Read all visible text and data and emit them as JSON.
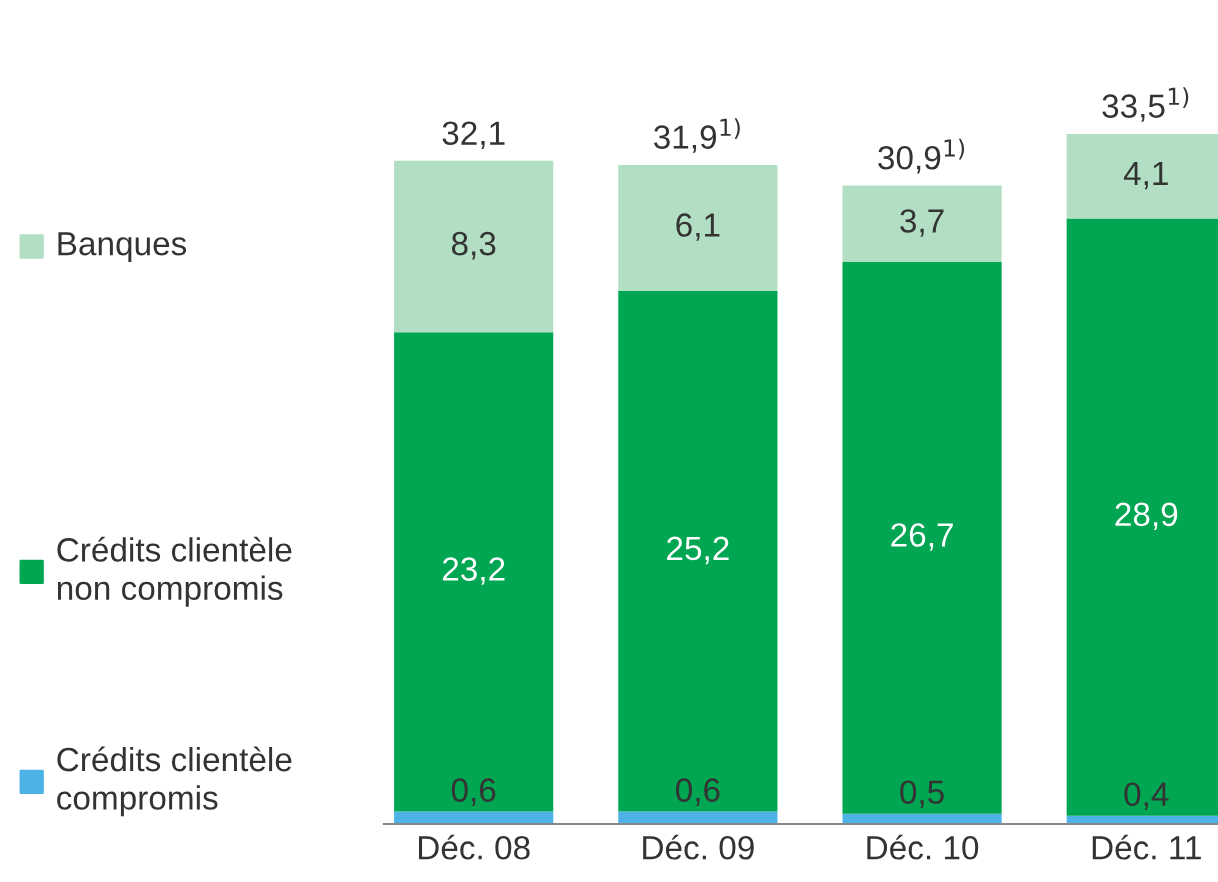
{
  "chart_data": {
    "type": "bar",
    "stacked": true,
    "categories": [
      "Déc. 08",
      "Déc. 09",
      "Déc. 10",
      "Déc. 11"
    ],
    "series": [
      {
        "name": "Crédits clientèle\ncompromis",
        "color": "#4db3e6",
        "values": [
          0.6,
          0.6,
          0.5,
          0.4
        ],
        "value_labels": [
          "0,6",
          "0,6",
          "0,5",
          "0,4"
        ]
      },
      {
        "name": "Crédits clientèle\nnon compromis",
        "color": "#00a651",
        "values": [
          23.2,
          25.2,
          26.7,
          28.9
        ],
        "value_labels": [
          "23,2",
          "25,2",
          "26,7",
          "28,9"
        ]
      },
      {
        "name": "Banques",
        "color": "#b2dfc4",
        "values": [
          8.3,
          6.1,
          3.7,
          4.1
        ],
        "value_labels": [
          "8,3",
          "6,1",
          "3,7",
          "4,1"
        ]
      }
    ],
    "totals": [
      "32,1",
      "31,9$^{1)}$",
      "30,9$^{1)}$",
      "33,5$^{1)}$"
    ],
    "legend": "left",
    "grid": false
  }
}
